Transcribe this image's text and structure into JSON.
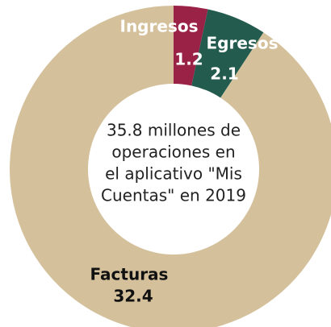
{
  "chart_data": {
    "type": "donut",
    "categories": [
      "Ingresos",
      "Egresos",
      "Facturas"
    ],
    "values": [
      1.2,
      2.1,
      32.4
    ],
    "colors": [
      "#9b2247",
      "#235b4e",
      "#d4c19c"
    ],
    "center_text": [
      "35.8 millones de",
      "operaciones en",
      "el aplicativo \"Mis",
      "Cuentas\" en 2019"
    ]
  }
}
